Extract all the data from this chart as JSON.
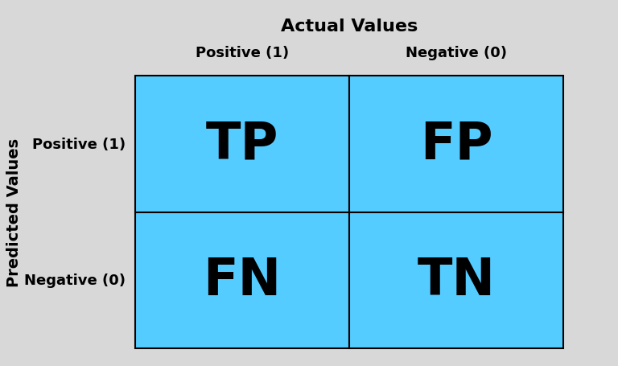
{
  "title": "Actual Values",
  "ylabel": "Predicted Values",
  "col_labels": [
    "Positive (1)",
    "Negative (0)"
  ],
  "row_labels": [
    "Positive (1)",
    "Negative (0)"
  ],
  "cell_texts": [
    [
      "TP",
      "FP"
    ],
    [
      "FN",
      "TN"
    ]
  ],
  "cell_color": "#55CCFF",
  "cell_edge_color": "#000000",
  "text_color": "#000000",
  "background_color": "#D8D8D8",
  "title_fontsize": 16,
  "cell_text_fontsize": 46,
  "row_col_label_fontsize": 13,
  "ylabel_fontsize": 14
}
